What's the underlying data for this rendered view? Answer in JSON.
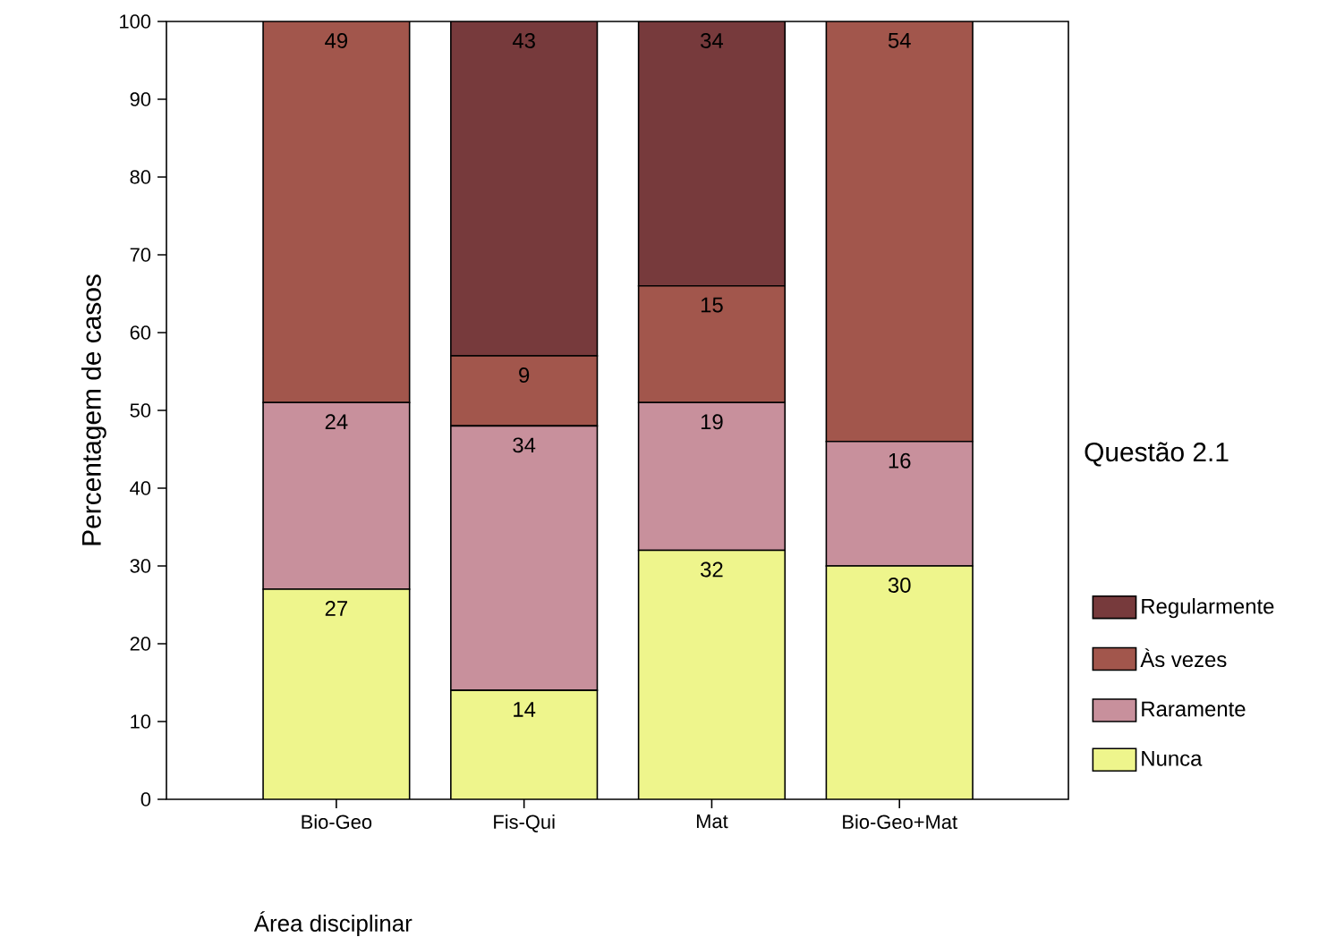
{
  "chart_data": {
    "type": "bar",
    "stacked": true,
    "xlabel": "Área disciplinar",
    "ylabel": "Percentagem de casos",
    "legend_title": "Questão 2.1",
    "legend": "right",
    "data_labels": true,
    "categories": [
      "Bio-Geo",
      "Fis-Qui",
      "Mat",
      "Bio-Geo+Mat"
    ],
    "series": [
      {
        "name": "Nunca",
        "color": "#eef58c",
        "values": [
          27,
          14,
          32,
          30
        ]
      },
      {
        "name": "Raramente",
        "color": "#c8909c",
        "values": [
          24,
          34,
          19,
          16
        ]
      },
      {
        "name": "Às vezes",
        "color": "#a2564c",
        "values": [
          49,
          9,
          15,
          54
        ]
      },
      {
        "name": "Regularmente",
        "color": "#773a3c",
        "values": [
          null,
          43,
          34,
          null
        ]
      }
    ],
    "ylim": [
      0,
      100
    ],
    "yticks": [
      0,
      10,
      20,
      30,
      40,
      50,
      60,
      70,
      80,
      90,
      100
    ]
  }
}
